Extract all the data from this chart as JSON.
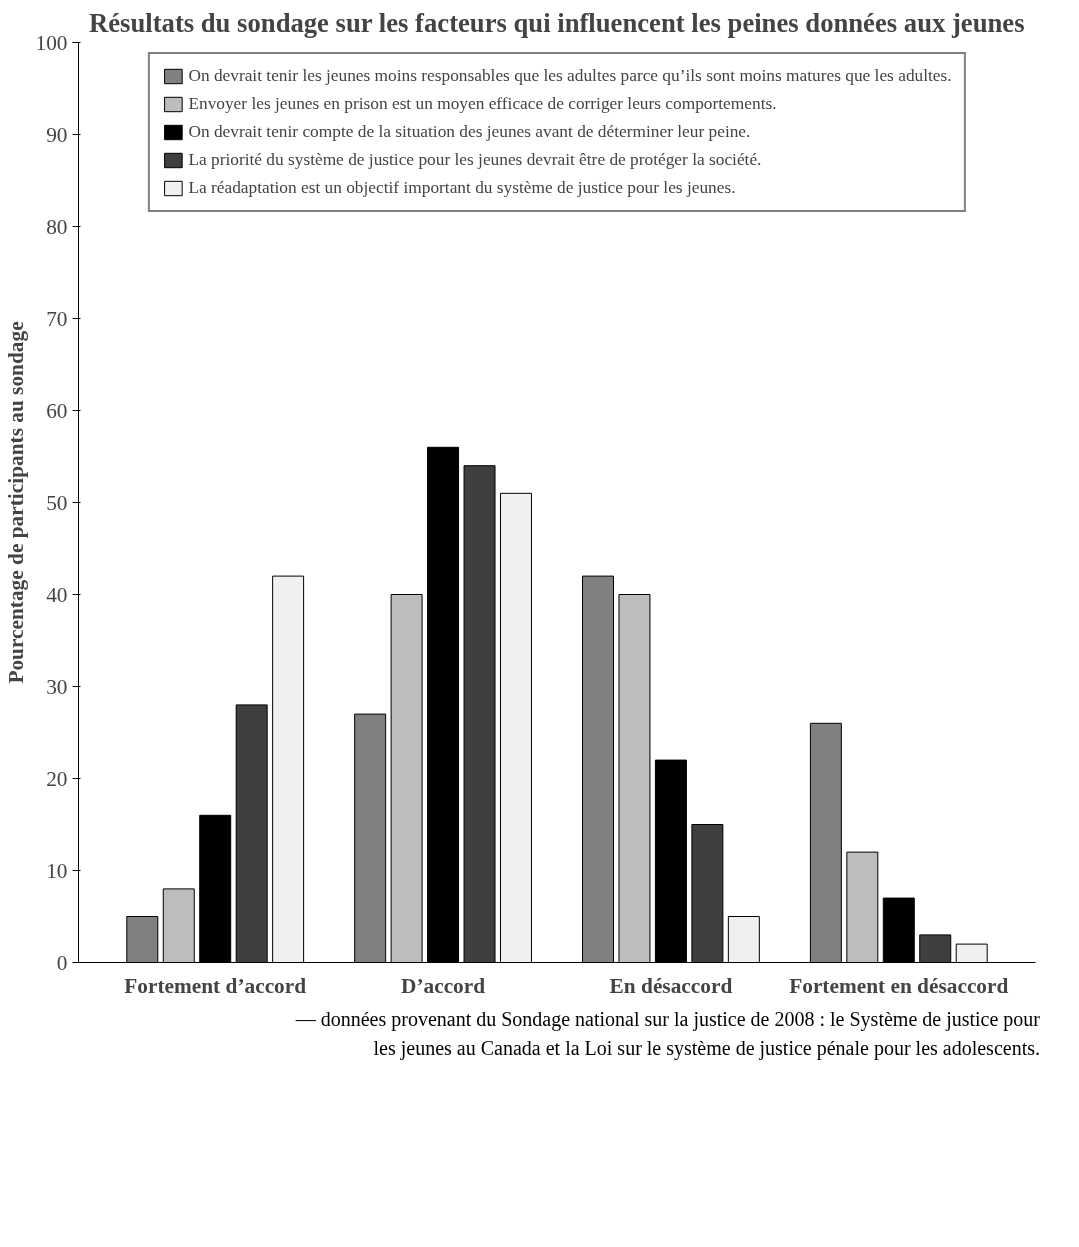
{
  "chart_data": {
    "type": "bar",
    "title": "Résultats du sondage sur les facteurs qui influencent les peines données aux jeunes",
    "ylabel": "Pourcentage de participants au sondage",
    "categories": [
      "Fortement d’accord",
      "D’accord",
      "En désaccord",
      "Fortement en désaccord"
    ],
    "series": [
      {
        "name": "On devrait tenir les jeunes moins responsables que les adultes parce qu’ils sont moins matures que les adultes.",
        "color": "#808080",
        "values": [
          5,
          27,
          42,
          26
        ]
      },
      {
        "name": "Envoyer les jeunes en prison est un moyen efficace de corriger leurs comportements.",
        "color": "#bdbdbd",
        "values": [
          8,
          40,
          40,
          12
        ]
      },
      {
        "name": "On devrait tenir compte de la situation des jeunes avant de déterminer leur peine.",
        "color": "#000000",
        "values": [
          16,
          56,
          22,
          7
        ]
      },
      {
        "name": "La priorité du système de justice pour les jeunes devrait être de protéger la société.",
        "color": "#3f3f3f",
        "values": [
          28,
          54,
          15,
          3
        ]
      },
      {
        "name": "La réadaptation est un objectif important du système de justice pour les jeunes.",
        "color": "#f0f0f0",
        "values": [
          42,
          51,
          5,
          2
        ]
      }
    ],
    "ylim": [
      0,
      100
    ],
    "yticks": [
      0,
      10,
      20,
      30,
      40,
      50,
      60,
      70,
      80,
      90,
      100
    ],
    "legend": "top",
    "grid": false,
    "annotations": [
      "— données provenant du Sondage national sur la justice de 2008 : le Système de justice pour les jeunes au Canada et la Loi sur le système de justice pénale pour les adolescents."
    ]
  }
}
